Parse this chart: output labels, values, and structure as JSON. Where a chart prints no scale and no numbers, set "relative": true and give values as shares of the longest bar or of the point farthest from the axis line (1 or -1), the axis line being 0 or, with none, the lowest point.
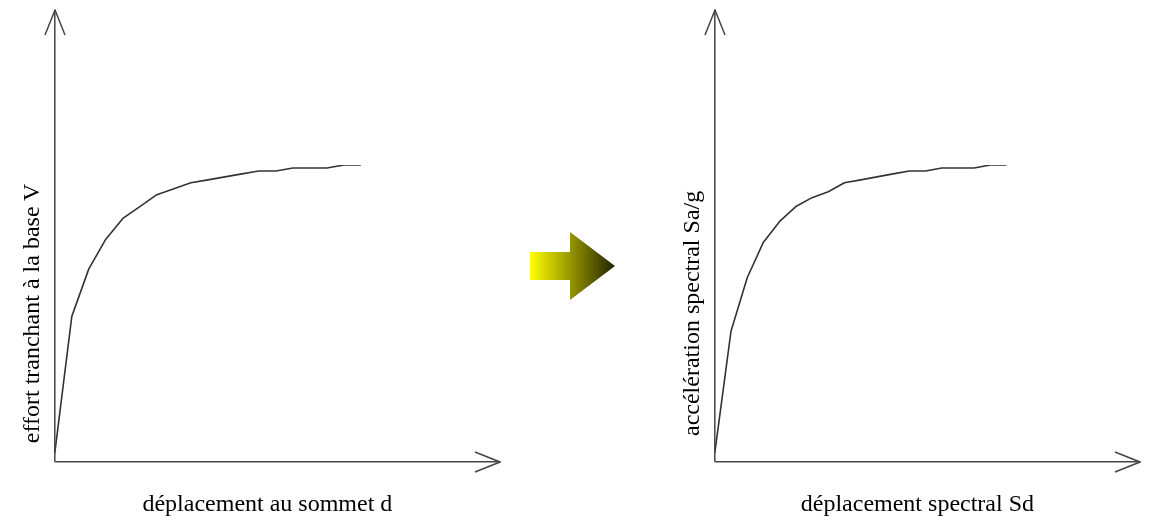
{
  "chart_data": [
    {
      "type": "line",
      "relative": true,
      "marker": "none",
      "xlabel": "déplacement au sommet d",
      "ylabel": "effort tranchant à la base V",
      "categories": [
        null,
        null,
        null,
        null,
        null,
        null,
        null,
        null,
        null,
        null,
        null,
        null,
        null,
        null,
        null,
        null,
        null,
        null,
        null,
        null,
        null,
        null,
        null,
        null,
        null,
        null
      ],
      "series": [
        {
          "color": "#333333",
          "values": [
            0.03,
            0.49,
            0.65,
            0.75,
            0.82,
            0.86,
            0.9,
            0.92,
            0.94,
            0.95,
            0.96,
            0.97,
            0.98,
            0.98,
            0.99,
            0.99,
            0.99,
            1.0,
            1.0,
            null,
            null,
            null,
            null,
            null,
            null,
            null
          ]
        }
      ]
    },
    {
      "type": "line",
      "relative": true,
      "marker": "none",
      "xlabel": "déplacement spectral Sd",
      "ylabel": "accélération spectral Sa/g",
      "categories": [
        null,
        null,
        null,
        null,
        null,
        null,
        null,
        null,
        null,
        null,
        null,
        null,
        null,
        null,
        null,
        null,
        null,
        null,
        null,
        null,
        null,
        null,
        null,
        null,
        null,
        null
      ],
      "series": [
        {
          "color": "#333333",
          "values": [
            0.03,
            0.44,
            0.62,
            0.74,
            0.81,
            0.86,
            0.89,
            0.91,
            0.94,
            0.95,
            0.96,
            0.97,
            0.98,
            0.98,
            0.99,
            0.99,
            0.99,
            1.0,
            1.0,
            null,
            null,
            null,
            null,
            null,
            null,
            null
          ]
        }
      ]
    }
  ]
}
